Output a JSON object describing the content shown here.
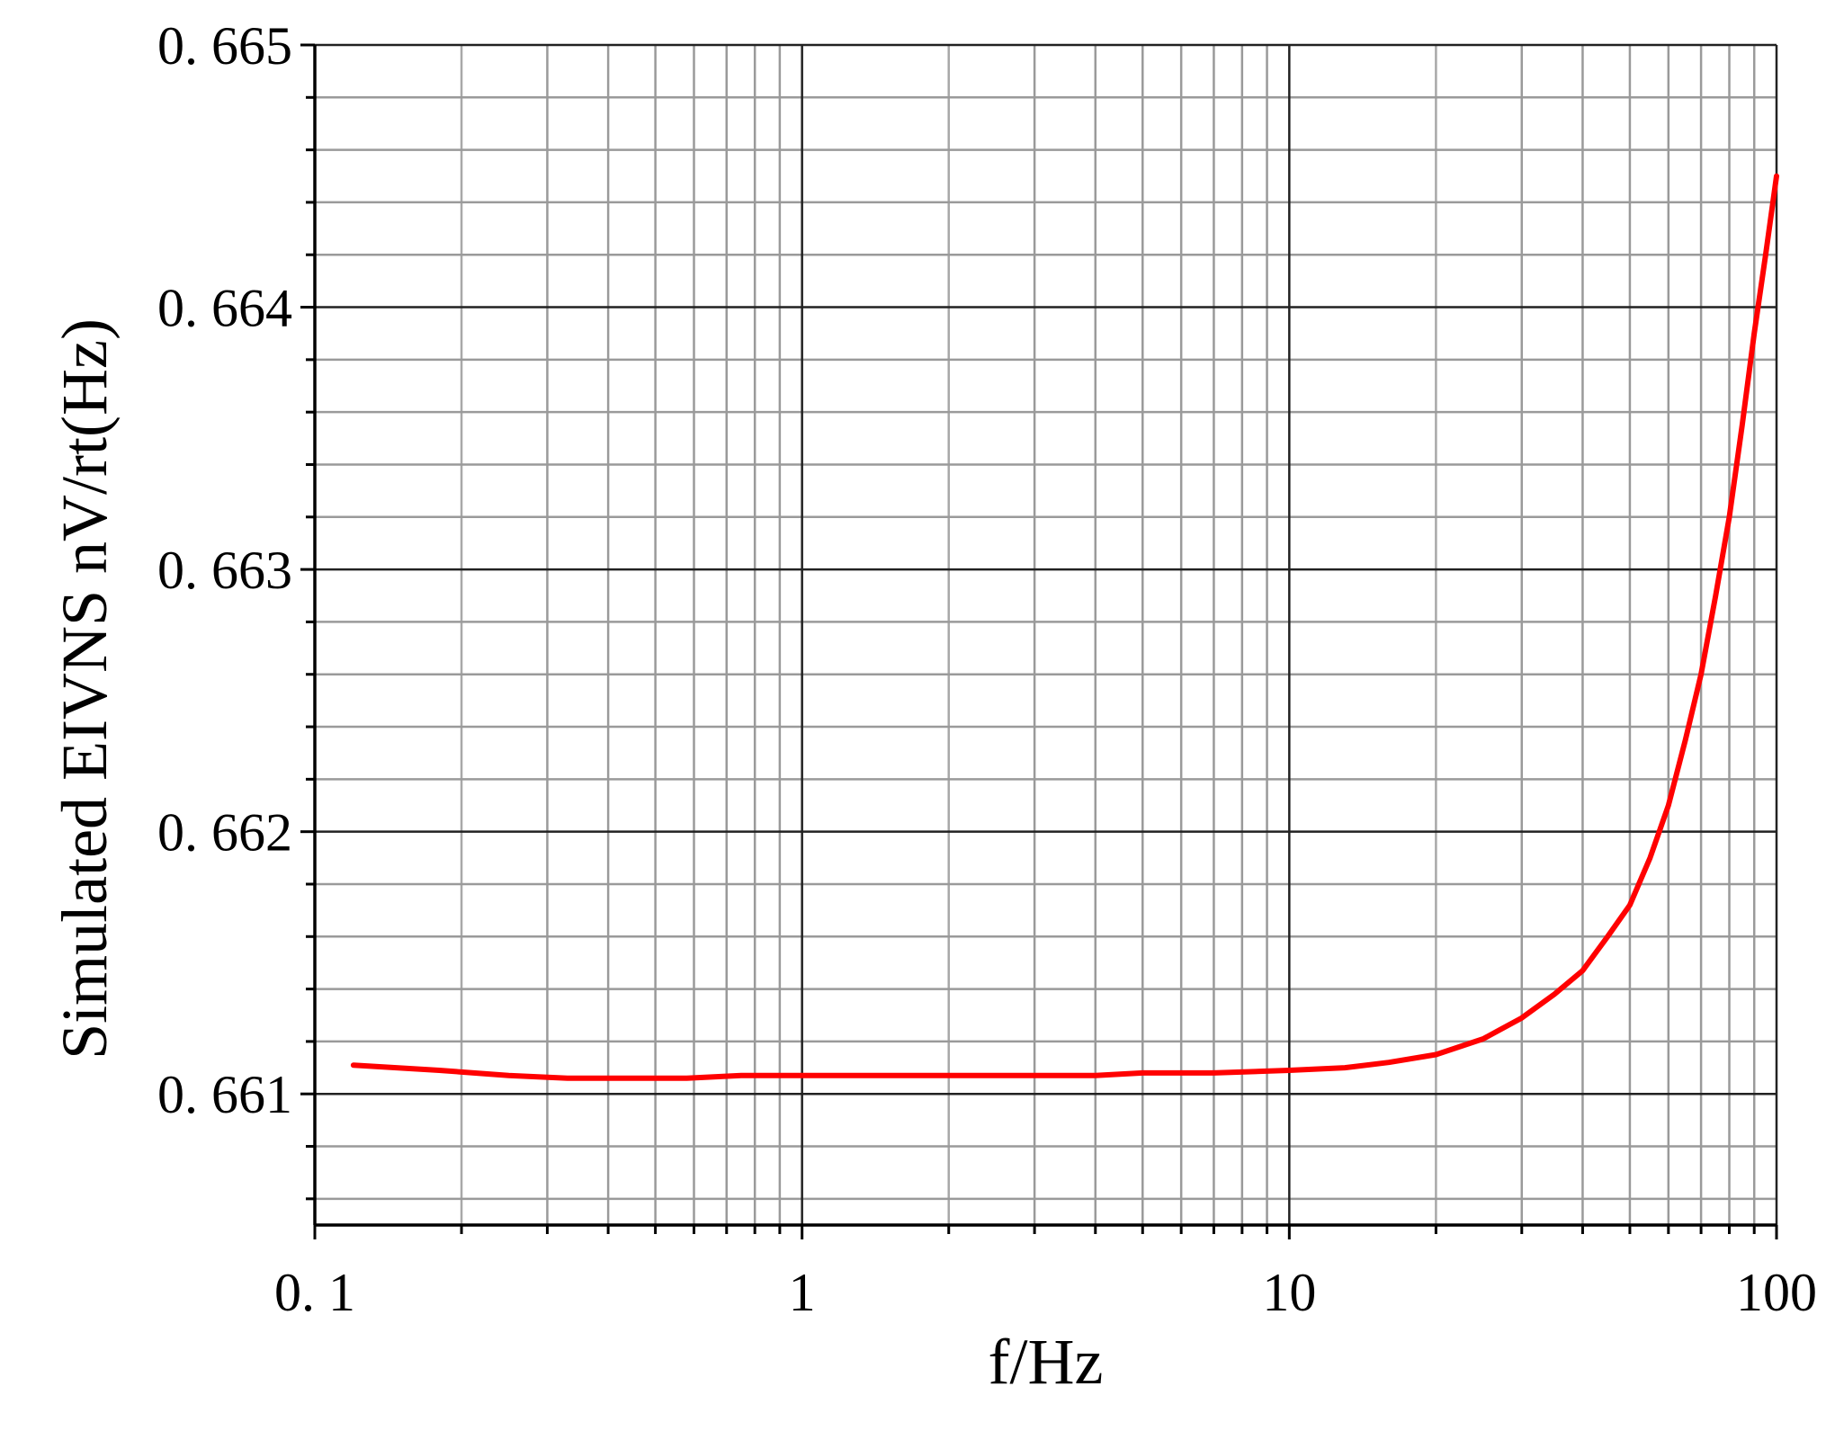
{
  "chart_data": {
    "type": "line",
    "title": "",
    "xlabel": "f/Hz",
    "ylabel": "Simulated EIVNS nV/rt(Hz)",
    "x_scale": "log",
    "xlim": [
      0.1,
      100
    ],
    "ylim": [
      0.6605,
      0.665
    ],
    "x_ticks": [
      0.1,
      1,
      10,
      100
    ],
    "x_tick_labels": [
      "0. 1",
      "1",
      "10",
      "100"
    ],
    "y_ticks": [
      0.661,
      0.662,
      0.663,
      0.664,
      0.665
    ],
    "y_tick_labels": [
      "0. 661",
      "0. 662",
      "0. 663",
      "0. 664",
      "0. 665"
    ],
    "grid": true,
    "legend": "none",
    "series": [
      {
        "color": "#ff0000",
        "x": [
          0.12,
          0.18,
          0.25,
          0.33,
          0.45,
          0.58,
          0.75,
          1,
          1.5,
          2,
          3,
          4,
          5,
          7,
          10,
          13,
          16,
          20,
          25,
          30,
          35,
          40,
          45,
          50,
          55,
          60,
          65,
          70,
          75,
          80,
          85,
          90,
          95,
          100
        ],
        "y": [
          0.66111,
          0.66109,
          0.66107,
          0.66106,
          0.66106,
          0.66106,
          0.66107,
          0.66107,
          0.66107,
          0.66107,
          0.66107,
          0.66107,
          0.66108,
          0.66108,
          0.66109,
          0.6611,
          0.66112,
          0.66115,
          0.66121,
          0.66129,
          0.66138,
          0.66147,
          0.6616,
          0.66172,
          0.6619,
          0.6621,
          0.66235,
          0.6626,
          0.6629,
          0.6632,
          0.66355,
          0.6639,
          0.6642,
          0.6645
        ]
      }
    ]
  }
}
